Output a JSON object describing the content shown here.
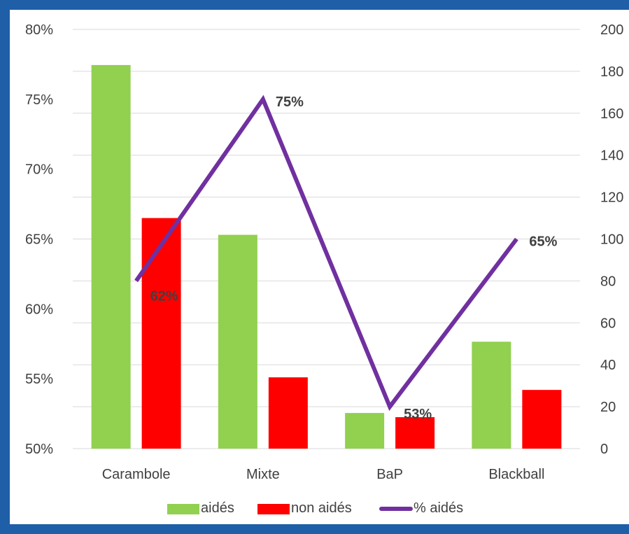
{
  "chart_data": {
    "type": "bar",
    "categories": [
      "Carambole",
      "Mixte",
      "BaP",
      "Blackball"
    ],
    "series": [
      {
        "name": "aidés",
        "type": "bar",
        "axis": "right",
        "color": "#92d050",
        "values": [
          183,
          102,
          17,
          51
        ]
      },
      {
        "name": "non aidés",
        "type": "bar",
        "axis": "right",
        "color": "#ff0000",
        "values": [
          110,
          34,
          15,
          28
        ]
      },
      {
        "name": "% aidés",
        "type": "line",
        "axis": "left",
        "color": "#7030a0",
        "values": [
          62,
          75,
          53,
          65
        ],
        "labels": [
          "62%",
          "75%",
          "53%",
          "65%"
        ]
      }
    ],
    "left_axis": {
      "min": 50,
      "max": 80,
      "ticks": [
        "50%",
        "55%",
        "60%",
        "65%",
        "70%",
        "75%",
        "80%"
      ]
    },
    "right_axis": {
      "min": 0,
      "max": 200,
      "ticks": [
        "0",
        "20",
        "40",
        "60",
        "80",
        "100",
        "120",
        "140",
        "160",
        "180",
        "200"
      ]
    },
    "grid": true,
    "legend_position": "bottom"
  }
}
